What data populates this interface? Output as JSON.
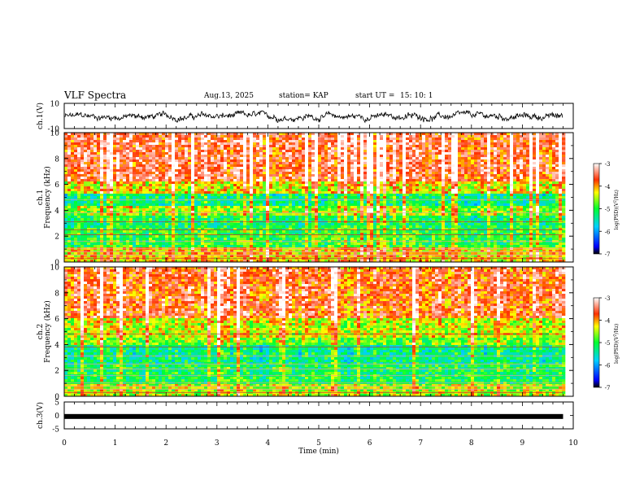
{
  "header": {
    "title": "VLF Spectra",
    "date": "Aug.13, 2025",
    "station": "station= KAP",
    "start_label": "start  UT  =",
    "start_time": "15: 10: 1"
  },
  "chart_data": [
    {
      "type": "line",
      "panel": "ch1-waveform",
      "ylabel": "ch.1(V)",
      "ylim": [
        -10,
        10
      ],
      "ytick_labels": [
        "10",
        "-10"
      ],
      "xlim": [
        0,
        10
      ],
      "data_end_min": 9.8,
      "typical_range": [
        -4,
        3
      ]
    },
    {
      "type": "heatmap",
      "panel": "ch1-spectrogram",
      "ylabel": "ch.1\nFrequency  (kHz)",
      "ylabel_line1": "ch.1",
      "ylabel_line2": "Frequency  (kHz)",
      "ylim": [
        0,
        10
      ],
      "ytick_labels": [
        "0",
        "2",
        "4",
        "6",
        "8",
        "10"
      ],
      "xlim": [
        0,
        10
      ],
      "data_end_min": 9.8,
      "bands_khz": [
        {
          "from": 0,
          "to": 1.2,
          "level": -4.2
        },
        {
          "from": 1.2,
          "to": 2.6,
          "level": -5.0
        },
        {
          "from": 2.6,
          "to": 3.6,
          "level": -5.2
        },
        {
          "from": 3.6,
          "to": 4.3,
          "level": -4.6
        },
        {
          "from": 4.3,
          "to": 5.2,
          "level": -5.3
        },
        {
          "from": 5.2,
          "to": 6.2,
          "level": -4.3
        },
        {
          "from": 6.2,
          "to": 10,
          "level": -3.6
        }
      ],
      "colorbar": {
        "label": "log(PSD)(V²/Hz)",
        "label_main": "log(PSD)(V",
        "label_sup": "2",
        "label_tail": "/Hz)",
        "range": [
          -7,
          -3
        ],
        "tick_labels": [
          "-3",
          "-4",
          "-5",
          "-6",
          "-7"
        ]
      }
    },
    {
      "type": "heatmap",
      "panel": "ch2-spectrogram",
      "ylabel": "ch.2\nFrequency  (kHz)",
      "ylabel_line1": "ch.2",
      "ylabel_line2": "Frequency  (kHz)",
      "ylim": [
        0,
        10
      ],
      "ytick_labels": [
        "0",
        "2",
        "4",
        "6",
        "8",
        "10"
      ],
      "xlim": [
        0,
        10
      ],
      "data_end_min": 9.8,
      "bands_khz": [
        {
          "from": 0,
          "to": 1.0,
          "level": -4.5
        },
        {
          "from": 1.0,
          "to": 2.4,
          "level": -5.1
        },
        {
          "from": 2.4,
          "to": 3.9,
          "level": -5.3
        },
        {
          "from": 3.9,
          "to": 4.5,
          "level": -4.7
        },
        {
          "from": 4.5,
          "to": 6.0,
          "level": -4.4
        },
        {
          "from": 6.0,
          "to": 10,
          "level": -3.7
        }
      ],
      "colorbar": {
        "label": "log(PSD)(V²/Hz)",
        "label_main": "log(PSD)(V",
        "label_sup": "2",
        "label_tail": "/Hz)",
        "range": [
          -7,
          -3
        ],
        "tick_labels": [
          "-3",
          "-4",
          "-5",
          "-6",
          "-7"
        ]
      }
    },
    {
      "type": "line",
      "panel": "ch3-waveform",
      "ylabel": "ch.3(V)",
      "ylim": [
        -5,
        5
      ],
      "ytick_labels": [
        "5",
        "0",
        "-5"
      ],
      "xlim": [
        0,
        10
      ],
      "data_end_min": 9.8,
      "trace_level_v": -0.4,
      "xlabel": "Time  (min)",
      "xtick_labels": [
        "0",
        "1",
        "2",
        "3",
        "4",
        "5",
        "6",
        "7",
        "8",
        "9",
        "10"
      ]
    }
  ]
}
